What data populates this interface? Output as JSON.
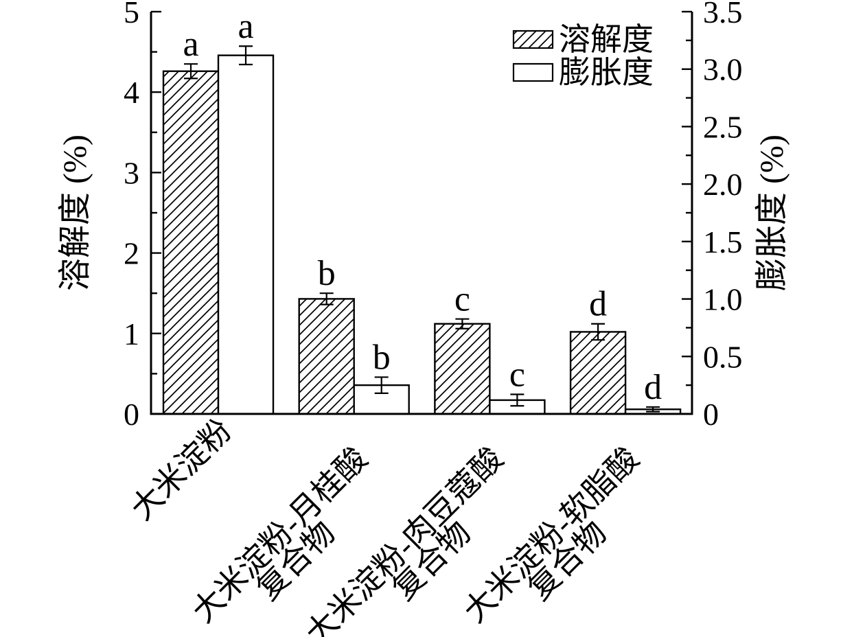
{
  "chart_data": {
    "type": "bar",
    "title": "",
    "background": "#ffffff",
    "foreground": "#000000",
    "grid": false,
    "categories": [
      {
        "lines": [
          "大米淀粉"
        ]
      },
      {
        "lines": [
          "大米淀粉-月桂酸",
          "复合物"
        ]
      },
      {
        "lines": [
          "大米淀粉-肉豆蔻酸",
          "复合物"
        ]
      },
      {
        "lines": [
          "大米淀粉-软脂酸",
          "复合物"
        ]
      }
    ],
    "series": [
      {
        "name": "溶解度",
        "axis": "left",
        "style": "hatched",
        "values": [
          4.26,
          1.43,
          1.12,
          1.02
        ],
        "errors": [
          0.09,
          0.07,
          0.06,
          0.1
        ],
        "letters": [
          "a",
          "b",
          "c",
          "d"
        ]
      },
      {
        "name": "膨胀度",
        "axis": "right",
        "style": "open",
        "values": [
          3.12,
          0.25,
          0.12,
          0.04
        ],
        "errors": [
          0.08,
          0.07,
          0.05,
          0.02
        ],
        "letters": [
          "a",
          "b",
          "c",
          "d"
        ]
      }
    ],
    "left_axis": {
      "label": "溶解度 (%)",
      "min": 0,
      "max": 5,
      "major_step": 1,
      "minor_step": 0.5,
      "tick_labels": [
        "0",
        "1",
        "2",
        "3",
        "4",
        "5"
      ]
    },
    "right_axis": {
      "label": "膨胀度 (%)",
      "min": 0,
      "max": 3.5,
      "major_step": 0.5,
      "minor_step": 0.25,
      "tick_labels": [
        "0",
        "0.5",
        "1.0",
        "1.5",
        "2.0",
        "2.5",
        "3.0",
        "3.5"
      ]
    },
    "legend": {
      "position": "top-right",
      "frame": false,
      "entries": [
        {
          "label": "溶解度",
          "swatch": "hatched"
        },
        {
          "label": "膨胀度",
          "swatch": "open"
        }
      ]
    }
  }
}
